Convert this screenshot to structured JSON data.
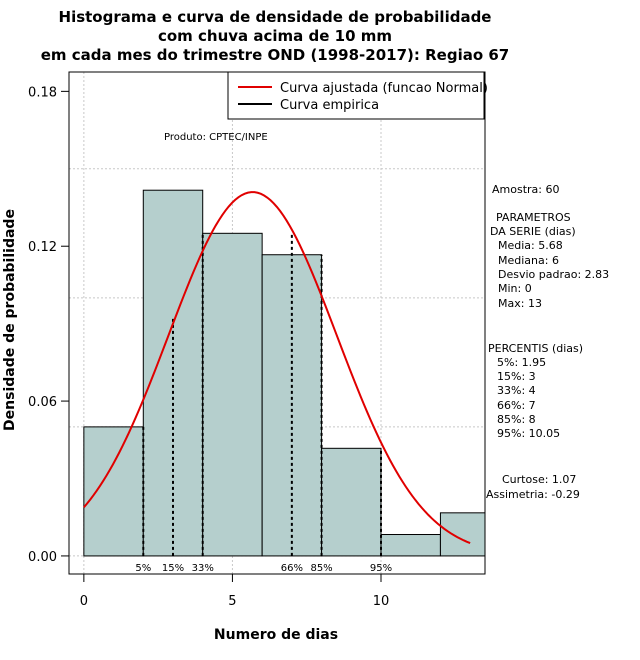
{
  "chart_data": {
    "type": "bar",
    "title_lines": [
      "Histograma e curva de densidade de probabilidade",
      "com chuva acima de 10 mm",
      "em cada mes do trimestre OND (1998-2017): Regiao 67"
    ],
    "xlabel": "Numero de dias",
    "ylabel": "Densidade de probabilidade",
    "xlim": [
      -0.5,
      13.5
    ],
    "ylim": [
      -0.007,
      0.1875
    ],
    "x_ticks": [
      0,
      5,
      10
    ],
    "x_tick_labels": [
      "0",
      "5",
      "10"
    ],
    "y_ticks": [
      0.0,
      0.06,
      0.12,
      0.18
    ],
    "y_tick_labels": [
      "0.00",
      "0.06",
      "0.12",
      "0.18"
    ],
    "x_grid": [
      0,
      5,
      10
    ],
    "y_grid": [
      0.0,
      0.05,
      0.1,
      0.15
    ],
    "grid": true,
    "bins": [
      {
        "x0": 0,
        "x1": 2,
        "density": 0.05
      },
      {
        "x0": 2,
        "x1": 4,
        "density": 0.1417
      },
      {
        "x0": 4,
        "x1": 6,
        "density": 0.125
      },
      {
        "x0": 6,
        "x1": 8,
        "density": 0.1167
      },
      {
        "x0": 8,
        "x1": 10,
        "density": 0.0417
      },
      {
        "x0": 10,
        "x1": 12,
        "density": 0.0083
      },
      {
        "x0": 12,
        "x1": 14,
        "density": 0.0167
      }
    ],
    "bar_color": "#b5cfcd",
    "normal_curve": {
      "name": "Curva ajustada (funcao Normal)",
      "color": "#e00000",
      "mean": 5.68,
      "sd": 2.83,
      "x_from": 0,
      "x_to": 13
    },
    "empirical_curve": {
      "name": "Curva empirica",
      "color": "#000000"
    },
    "percentile_lines": [
      {
        "x": 2,
        "height": 0.05,
        "label": "5%"
      },
      {
        "x": 3,
        "height": 0.0925,
        "label": "15%"
      },
      {
        "x": 4,
        "height": 0.125,
        "label": "33%"
      },
      {
        "x": 7,
        "height": 0.125,
        "label": "66%"
      },
      {
        "x": 8,
        "height": 0.1167,
        "label": "85%"
      },
      {
        "x": 10,
        "height": 0.0417,
        "label": "95%"
      }
    ],
    "legend_position": "top-right",
    "annotation": "Produto: CPTEC/INPE"
  },
  "stats": {
    "sample": "Amostra: 60",
    "params_title_1": "PARAMETROS",
    "params_title_2": "DA SERIE (dias)",
    "media": "Media: 5.68",
    "mediana": "Mediana: 6",
    "desvio": "Desvio padrao: 2.83",
    "min": "Min: 0",
    "max": "Max: 13",
    "percentis_title": "PERCENTIS (dias)",
    "p5": "5%: 1.95",
    "p15": "15%: 3",
    "p33": "33%: 4",
    "p66": "66%: 7",
    "p85": "85%: 8",
    "p95": "95%: 10.05",
    "curtose": "Curtose: 1.07",
    "assimetria": "Assimetria: -0.29"
  }
}
